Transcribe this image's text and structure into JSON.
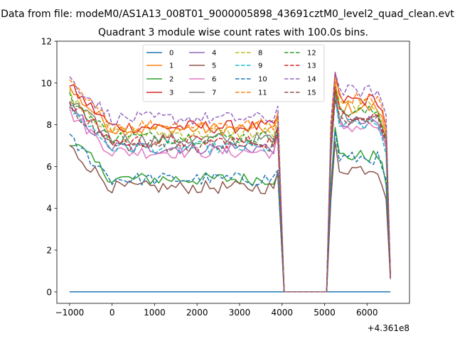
{
  "figure": {
    "suptitle": "Data from file: modeM0/AS1A13_008T01_9000005898_43691cztM0_level2_quad_clean.evt",
    "title": "Quadrant 3 module wise count rates with 100.0s bins.",
    "offset_label": "+4.361e8"
  },
  "chart_data": {
    "type": "line",
    "title": "Quadrant 3 module wise count rates with 100.0s bins.",
    "suptitle": "Data from file: modeM0/AS1A13_008T01_9000005898_43691cztM0_level2_quad_clean.evt",
    "xlabel": "",
    "ylabel": "",
    "x_offset": "+4.361e8",
    "xlim": [
      -1300,
      7000
    ],
    "ylim": [
      -0.55,
      12
    ],
    "xticks": [
      -1000,
      0,
      1000,
      2000,
      3000,
      4000,
      5000,
      6000
    ],
    "yticks": [
      0,
      2,
      4,
      6,
      8,
      10,
      12
    ],
    "grid": false,
    "legend": {
      "position": "top-center",
      "columns": 4
    },
    "segments": [
      {
        "from": -1000,
        "to": 3900,
        "value": "per-series level"
      },
      {
        "from": 4050,
        "to": 5050,
        "value": 0
      },
      {
        "from": 5150,
        "to": 6600,
        "value": "per-series level"
      }
    ],
    "series": [
      {
        "name": "0",
        "color": "#1f77b4",
        "style": "solid",
        "level_before": 0,
        "level_after": 0
      },
      {
        "name": "1",
        "color": "#ff7f0e",
        "style": "solid",
        "level_before": 7.8,
        "level_after": 8.8
      },
      {
        "name": "2",
        "color": "#2ca02c",
        "style": "solid",
        "level_before": 5.4,
        "level_after": 6.5
      },
      {
        "name": "3",
        "color": "#d62728",
        "style": "solid",
        "level_before": 7.9,
        "level_after": 9.2
      },
      {
        "name": "4",
        "color": "#9467bd",
        "style": "solid",
        "level_before": 6.9,
        "level_after": 8.1
      },
      {
        "name": "5",
        "color": "#8c564b",
        "style": "solid",
        "level_before": 5.0,
        "level_after": 5.9
      },
      {
        "name": "6",
        "color": "#e377c2",
        "style": "solid",
        "level_before": 6.7,
        "level_after": 7.9
      },
      {
        "name": "7",
        "color": "#7f7f7f",
        "style": "solid",
        "level_before": 7.3,
        "level_after": 8.4
      },
      {
        "name": "8",
        "color": "#bcbd22",
        "style": "dashed",
        "level_before": 7.6,
        "level_after": 8.9
      },
      {
        "name": "9",
        "color": "#17becf",
        "style": "dashed",
        "level_before": 6.9,
        "level_after": 8.0
      },
      {
        "name": "10",
        "color": "#1f77b4",
        "style": "dashed",
        "level_before": 5.4,
        "level_after": 6.4
      },
      {
        "name": "11",
        "color": "#ff7f0e",
        "style": "dashed",
        "level_before": 8.0,
        "level_after": 9.3
      },
      {
        "name": "12",
        "color": "#2ca02c",
        "style": "dashed",
        "level_before": 7.4,
        "level_after": 8.6
      },
      {
        "name": "13",
        "color": "#d62728",
        "style": "dashed",
        "level_before": 7.2,
        "level_after": 8.5
      },
      {
        "name": "14",
        "color": "#9467bd",
        "style": "dashed",
        "level_before": 8.3,
        "level_after": 9.6
      },
      {
        "name": "15",
        "color": "#8c564b",
        "style": "dashed",
        "level_before": 7.0,
        "level_after": 8.2
      }
    ]
  }
}
